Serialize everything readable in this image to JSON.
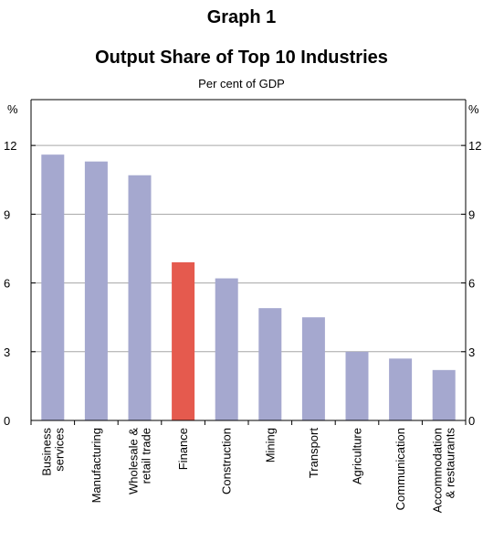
{
  "header": {
    "graph_label": "Graph 1",
    "title": "Output Share of Top 10 Industries",
    "subtitle": "Per cent of GDP"
  },
  "colors": {
    "bar": "#a5a8cf",
    "highlight": "#e55a4e",
    "grid": "#a6a6a6",
    "axis": "#000000"
  },
  "chart_data": {
    "type": "bar",
    "title": "Output Share of Top 10 Industries",
    "subtitle": "Per cent of GDP",
    "ylabel_left": "%",
    "ylabel_right": "%",
    "ylim": [
      0,
      14
    ],
    "yticks": [
      0,
      3,
      6,
      9,
      12
    ],
    "grid": true,
    "categories": [
      [
        "Business",
        "services"
      ],
      [
        "Manufacturing"
      ],
      [
        "Wholesale &",
        "retail trade"
      ],
      [
        "Finance"
      ],
      [
        "Construction"
      ],
      [
        "Mining"
      ],
      [
        "Transport"
      ],
      [
        "Agriculture"
      ],
      [
        "Communication"
      ],
      [
        "Accommodation",
        "& restaurants"
      ]
    ],
    "values": [
      11.6,
      11.3,
      10.7,
      6.9,
      6.2,
      4.9,
      4.5,
      3.0,
      2.7,
      2.2
    ],
    "highlight_index": 3
  }
}
